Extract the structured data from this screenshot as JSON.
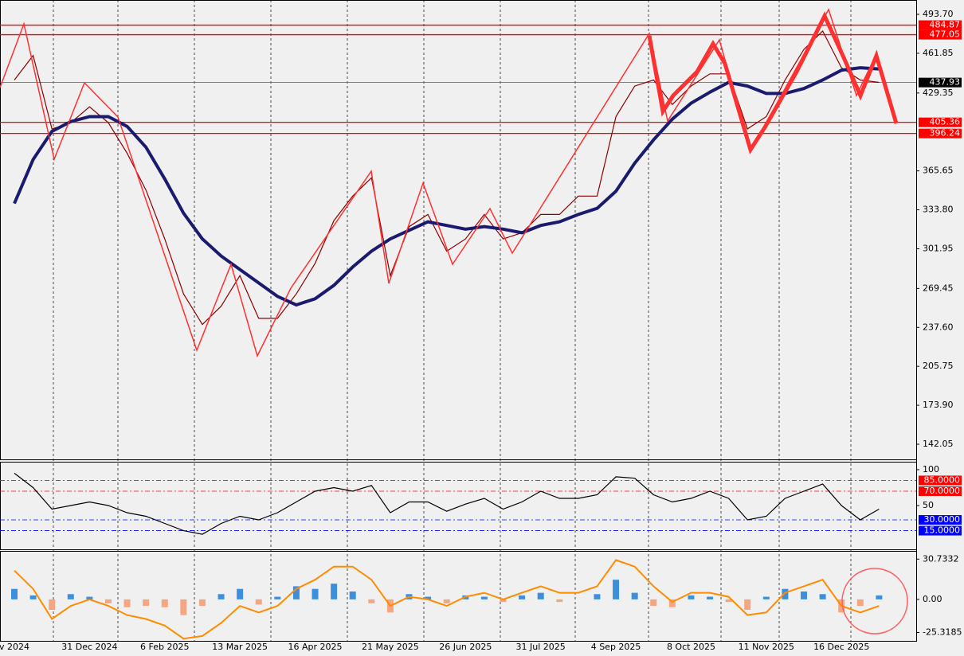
{
  "chart_data": [
    {
      "type": "line",
      "ylim": [
        129.68,
        505.42
      ],
      "yticks": [
        {
          "value": 493.7,
          "label": "493.70"
        },
        {
          "value": 461.85,
          "label": "461.85"
        },
        {
          "value": 429.35,
          "label": "429.35"
        },
        {
          "value": 365.65,
          "label": "365.65"
        },
        {
          "value": 333.8,
          "label": "333.80"
        },
        {
          "value": 301.95,
          "label": "301.95"
        },
        {
          "value": 269.45,
          "label": "269.45"
        },
        {
          "value": 237.6,
          "label": "237.60"
        },
        {
          "value": 205.75,
          "label": "205.75"
        },
        {
          "value": 173.9,
          "label": "173.90"
        },
        {
          "value": 142.05,
          "label": "142.05"
        }
      ],
      "levels": [
        {
          "value": 484.87,
          "label": "484.87",
          "color": "#ff0000"
        },
        {
          "value": 477.05,
          "label": "477.05",
          "color": "#ff0000"
        },
        {
          "value": 437.93,
          "label": "437.93",
          "color": "#000000"
        },
        {
          "value": 405.36,
          "label": "405.36",
          "color": "#ff0000"
        },
        {
          "value": 396.24,
          "label": "396.24",
          "color": "#ff0000"
        }
      ],
      "series": [
        {
          "color": "#8b0000",
          "values": [
            440,
            460,
            400,
            405,
            418,
            405,
            380,
            350,
            310,
            265,
            240,
            255,
            280,
            245,
            245,
            265,
            290,
            325,
            345,
            360,
            280,
            320,
            330,
            300,
            310,
            330,
            310,
            315,
            330,
            330,
            345,
            345,
            410,
            435,
            440,
            420,
            435,
            445,
            445,
            400,
            410,
            440,
            465,
            480,
            450,
            440,
            438,
            null
          ]
        },
        {
          "color": "#1a1a6e",
          "values": [
            339,
            375,
            398,
            406,
            410,
            410,
            402,
            385,
            359,
            331,
            310,
            296,
            285,
            274,
            263,
            256,
            261,
            272,
            287,
            300,
            310,
            317,
            324,
            321,
            318,
            320,
            318,
            315,
            321,
            324,
            330,
            335,
            349,
            372,
            391,
            408,
            421,
            430,
            438,
            435,
            429,
            429,
            433,
            440,
            448,
            450,
            449,
            null
          ]
        }
      ]
    },
    {
      "type": "line",
      "ylim": [
        -11,
        111
      ],
      "yticks": [
        100,
        50
      ],
      "levels": [
        {
          "value": 85,
          "label": "85.0000",
          "color": "#ff0000"
        },
        {
          "value": 70,
          "label": "70.0000",
          "color": "#ff0000"
        },
        {
          "value": 30,
          "label": "30.0000",
          "color": "#0000ff"
        },
        {
          "value": 15,
          "label": "15.0000",
          "color": "#0000ff"
        }
      ],
      "series": [
        {
          "color": "#000000",
          "values": [
            95,
            75,
            45,
            50,
            55,
            50,
            40,
            35,
            25,
            15,
            10,
            25,
            35,
            30,
            40,
            55,
            70,
            75,
            70,
            78,
            40,
            55,
            55,
            42,
            52,
            60,
            45,
            55,
            70,
            60,
            60,
            65,
            90,
            88,
            65,
            55,
            60,
            70,
            60,
            30,
            35,
            60,
            70,
            80,
            50,
            30,
            45,
            null
          ]
        }
      ]
    },
    {
      "type": "bar",
      "ylim": [
        -31.7,
        37
      ],
      "yticks": [
        30.7332,
        {
          "value": 0,
          "label": "0.00"
        },
        -25.3185
      ],
      "color": "#3d8fdc",
      "negative_color": "#f4a582",
      "values": [
        8,
        3,
        -8,
        4,
        2,
        -3,
        -6,
        -5,
        -6,
        -12,
        -5,
        4,
        8,
        -4,
        2,
        10,
        8,
        12,
        6,
        -3,
        -10,
        4,
        2,
        -3,
        3,
        2,
        -2,
        3,
        5,
        -2,
        0,
        4,
        15,
        5,
        -5,
        -6,
        3,
        2,
        -2,
        -8,
        2,
        8,
        6,
        4,
        -10,
        -5,
        3,
        null
      ],
      "line": {
        "color": "#ff8c00",
        "values": [
          22,
          8,
          -15,
          -5,
          0,
          -5,
          -12,
          -15,
          -20,
          -30,
          -28,
          -18,
          -5,
          -10,
          -5,
          8,
          15,
          25,
          25,
          15,
          -5,
          2,
          0,
          -5,
          2,
          5,
          0,
          5,
          10,
          5,
          5,
          10,
          30,
          25,
          10,
          -2,
          5,
          5,
          2,
          -12,
          -10,
          5,
          10,
          15,
          -5,
          -10,
          -5,
          null
        ]
      },
      "categories": [
        "v 2024",
        null,
        null,
        null,
        "31 Dec 2024",
        null,
        null,
        null,
        "6 Feb 2025",
        null,
        null,
        null,
        "13 Mar 2025",
        null,
        null,
        null,
        "16 Apr 2025",
        null,
        null,
        null,
        "21 May 2025",
        null,
        null,
        null,
        "26 Jun 2025",
        null,
        null,
        null,
        "31 Jul 2025",
        null,
        null,
        null,
        "4 Sep 2025",
        null,
        null,
        null,
        "8 Oct 2025",
        null,
        null,
        null,
        "11 Nov 2025",
        null,
        null,
        null,
        "16 Dec 2025",
        null,
        null,
        null
      ]
    }
  ]
}
